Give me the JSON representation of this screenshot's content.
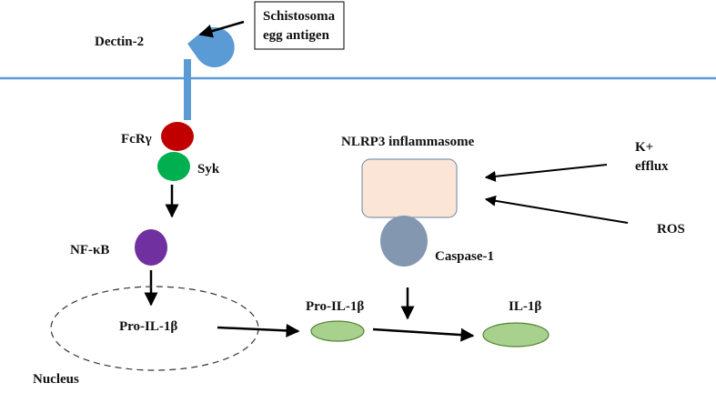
{
  "labels": {
    "receptor": "Dectin-2",
    "antigen_line1": "Schistosoma",
    "antigen_line2": "egg antigen",
    "fcr": "FcRγ",
    "syk": "Syk",
    "nfkb": "NF-κB",
    "pro_il1b_nucleus": "Pro-IL-1β",
    "nucleus": "Nucleus",
    "inflammasome": "NLRP3 inflammasome",
    "k_line1": "K+",
    "k_line2": "efflux",
    "ros": "ROS",
    "caspase": "Caspase-1",
    "pro_il1b": "Pro-IL-1β",
    "il1b": "IL-1β"
  },
  "colors": {
    "membrane": "#5b9bd5",
    "receptor": "#5b9bd5",
    "fcr": "#c00000",
    "syk": "#00b050",
    "nfkb": "#7030a0",
    "inflammasome_fill": "#fbe5d6",
    "inflammasome_stroke": "#8497b0",
    "caspase": "#8497b0",
    "il1b_fill": "#a9d18e",
    "il1b_stroke": "#548235",
    "arrow": "#000000"
  }
}
